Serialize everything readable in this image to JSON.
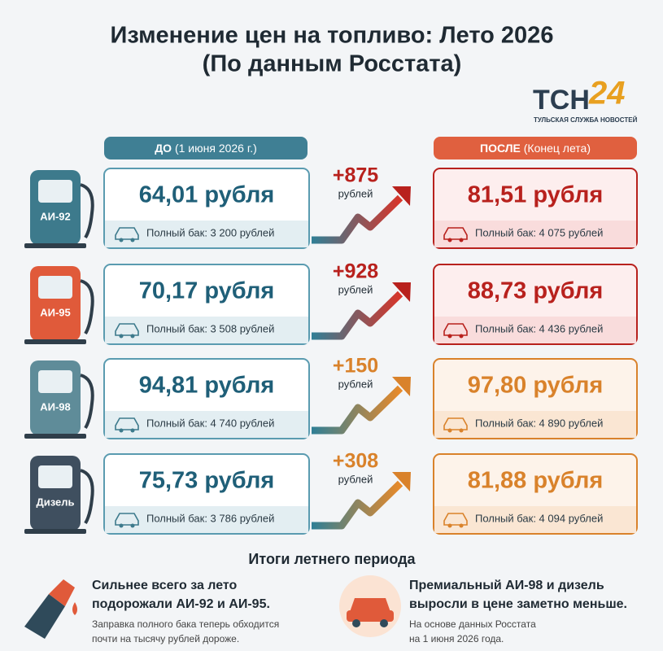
{
  "header": {
    "title_line1": "Изменение цен на топливо: Лето 2026",
    "title_line2": "(По данным Росстата)"
  },
  "logo": {
    "mark_left": "ТСН",
    "mark_right": "24",
    "caption": "ТУЛЬСКАЯ СЛУЖБА НОВОСТЕЙ"
  },
  "columns": {
    "before": {
      "label": "ДО",
      "note": "(1 июня 2026 г.)"
    },
    "after": {
      "label": "ПОСЛЕ",
      "note": "(Конец лета)"
    }
  },
  "rows": [
    {
      "fuel": "АИ-92",
      "before_price": "64,01 рубля",
      "before_tank": "Полный бак: 3 200 рублей",
      "delta": "+875",
      "delta_unit": "рублей",
      "after_price": "81,51 рубля",
      "after_tank": "Полный бак: 4 075 рублей"
    },
    {
      "fuel": "АИ-95",
      "before_price": "70,17 рубля",
      "before_tank": "Полный бак: 3 508 рублей",
      "delta": "+928",
      "delta_unit": "рублей",
      "after_price": "88,73 рубля",
      "after_tank": "Полный бак: 4 436 рублей"
    },
    {
      "fuel": "АИ-98",
      "before_price": "94,81 рубля",
      "before_tank": "Полный бак: 4 740 рублей",
      "delta": "+150",
      "delta_unit": "рублей",
      "after_price": "97,80 рубля",
      "after_tank": "Полный бак: 4 890 рублей"
    },
    {
      "fuel": "Дизель",
      "before_price": "75,73 рубля",
      "before_tank": "Полный бак: 3 786 рублей",
      "delta": "+308",
      "delta_unit": "рублей",
      "after_price": "81,88 рубля",
      "after_tank": "Полный бак: 4 094 рублей"
    }
  ],
  "summary": {
    "title": "Итоги летнего периода",
    "left": {
      "headline_line1": "Сильнее всего за лето",
      "headline_line2": "подорожали АИ-92 и АИ-95.",
      "text_line1": "Заправка полного бака теперь обходится",
      "text_line2": "почти на тысячу рублей дороже."
    },
    "right": {
      "headline_line1": "Премиальный АИ-98 и дизель",
      "headline_line2": "выросли в цене заметно меньше.",
      "text_line1": "На основе данных Росстата",
      "text_line2": "на 1 июня 2026 года."
    }
  }
}
